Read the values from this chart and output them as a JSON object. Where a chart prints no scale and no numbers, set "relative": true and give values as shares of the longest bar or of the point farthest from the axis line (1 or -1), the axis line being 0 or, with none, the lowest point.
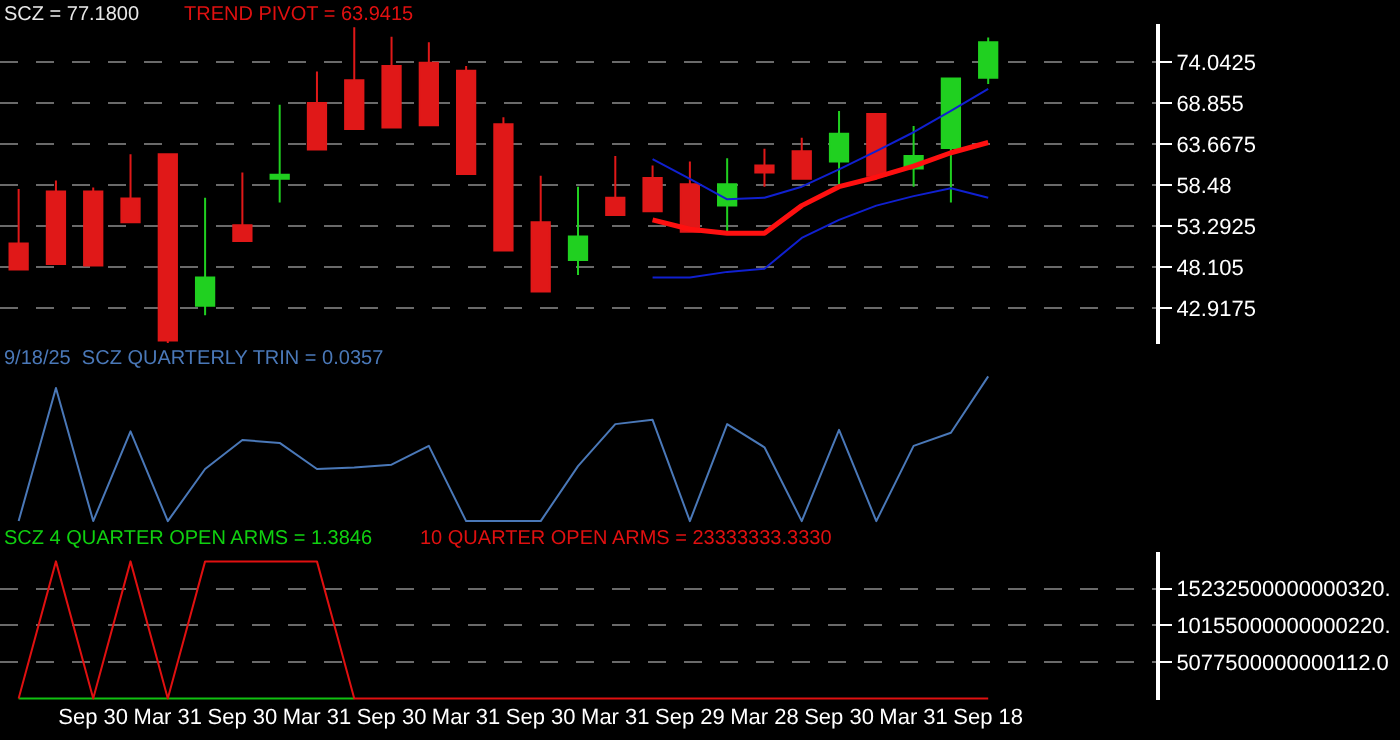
{
  "chart_data": [
    {
      "type": "candlestick",
      "categories": [
        null,
        null,
        null,
        null,
        null,
        null,
        null,
        null,
        null,
        null,
        null,
        null,
        null,
        null,
        null,
        null,
        null,
        null,
        null,
        null,
        null,
        null,
        null,
        null,
        null,
        null,
        null,
        null,
        null,
        null,
        null
      ],
      "ohlc": [
        [
          51.1,
          58.0,
          47.8,
          47.8
        ],
        [
          57.7,
          59.1,
          48.5,
          48.5
        ],
        [
          57.7,
          58.2,
          48.3,
          48.3
        ],
        [
          56.8,
          62.4,
          53.8,
          53.8
        ],
        [
          62.4,
          62.4,
          38.5,
          38.8
        ],
        [
          43.2,
          56.9,
          42.0,
          46.8
        ],
        [
          53.4,
          60.1,
          51.4,
          51.4
        ],
        [
          59.3,
          68.7,
          56.3,
          59.8
        ],
        [
          68.9,
          72.9,
          63.0,
          63.0
        ],
        [
          71.8,
          78.5,
          65.6,
          65.6
        ],
        [
          73.6,
          77.3,
          65.8,
          65.8
        ],
        [
          74.0,
          76.6,
          66.1,
          66.1
        ],
        [
          73.0,
          73.6,
          59.9,
          59.9
        ],
        [
          66.2,
          67.1,
          50.2,
          50.2
        ],
        [
          53.8,
          59.7,
          45.0,
          45.0
        ],
        [
          49.0,
          58.3,
          47.1,
          52.0
        ],
        [
          56.9,
          62.2,
          54.7,
          54.7
        ],
        [
          59.4,
          61.0,
          55.2,
          55.2
        ],
        [
          58.6,
          61.5,
          52.6,
          52.6
        ],
        [
          55.9,
          61.9,
          52.6,
          58.6
        ],
        [
          61.0,
          63.1,
          58.3,
          60.1
        ],
        [
          62.8,
          64.5,
          59.3,
          59.3
        ],
        [
          61.5,
          67.9,
          58.6,
          65.0
        ],
        [
          67.5,
          67.5,
          59.7,
          59.7
        ],
        [
          60.6,
          66.0,
          58.3,
          62.2
        ],
        [
          63.2,
          72.0,
          56.3,
          72.0
        ],
        [
          72.1,
          77.2,
          71.3,
          76.6
        ],
        null,
        null,
        null,
        null
      ],
      "series": [
        {
          "type": "line",
          "color": "#ff1010",
          "values": [
            null,
            null,
            null,
            null,
            null,
            null,
            null,
            null,
            null,
            null,
            null,
            null,
            null,
            null,
            null,
            null,
            null,
            54.1,
            52.9,
            52.4,
            52.4,
            55.9,
            58.3,
            59.5,
            60.9,
            62.6,
            63.9,
            null,
            null,
            null,
            null
          ]
        },
        {
          "type": "line",
          "color": "#1020d0",
          "values": [
            null,
            null,
            null,
            null,
            null,
            null,
            null,
            null,
            null,
            null,
            null,
            null,
            null,
            null,
            null,
            null,
            null,
            61.8,
            59.3,
            56.7,
            56.9,
            58.3,
            60.5,
            62.8,
            65.2,
            67.9,
            70.7,
            null,
            null,
            null,
            null
          ]
        },
        {
          "type": "line",
          "color": "#1020d0",
          "values": [
            null,
            null,
            null,
            null,
            null,
            null,
            null,
            null,
            null,
            null,
            null,
            null,
            null,
            null,
            null,
            null,
            null,
            46.8,
            46.8,
            47.5,
            47.9,
            51.8,
            54.1,
            55.9,
            57.1,
            58.1,
            56.9,
            null,
            null,
            null,
            null
          ]
        }
      ],
      "ylim": [
        38.36,
        78.92
      ],
      "yticks": [
        42.9175,
        48.105,
        53.2925,
        58.48,
        63.6675,
        68.855,
        74.0425
      ],
      "grid": "y",
      "tick_labels": "y",
      "annotations": [
        "SCZ = 77.1800",
        "TREND PIVOT = 63.9415"
      ]
    },
    {
      "type": "line",
      "relative": true,
      "categories": [
        null,
        null,
        null,
        null,
        null,
        null,
        null,
        null,
        null,
        null,
        null,
        null,
        null,
        null,
        null,
        null,
        null,
        null,
        null,
        null,
        null,
        null,
        null,
        null,
        null,
        null,
        null,
        null,
        null,
        null,
        null
      ],
      "series": [
        {
          "color": "#4a78b8",
          "values": [
            0,
            0.92,
            0,
            0.62,
            0,
            0.36,
            0.56,
            0.54,
            0.36,
            0.37,
            0.39,
            0.52,
            0,
            0,
            0,
            0.38,
            0.67,
            0.7,
            0,
            0.67,
            0.51,
            0,
            0.63,
            0,
            0.52,
            0.61,
            1,
            null,
            null,
            null,
            null
          ]
        }
      ],
      "tick_labels": false,
      "annotations": [
        "9/18/25  SCZ QUARTERLY TRIN = 0.0357"
      ]
    },
    {
      "type": "line",
      "categories": [
        null,
        null,
        "Sep 30",
        null,
        "Mar 31",
        null,
        "Sep 30",
        null,
        "Mar 31",
        null,
        "Sep 30",
        null,
        "Mar 31",
        null,
        "Sep 30",
        null,
        "Mar 31",
        null,
        "Sep 29",
        null,
        "Mar 28",
        null,
        "Sep 30",
        null,
        "Mar 31",
        null,
        "Sep 18",
        null,
        null,
        null,
        null
      ],
      "series": [
        {
          "color": "#10c010",
          "values": [
            0,
            0,
            0,
            0,
            0,
            0,
            0,
            0,
            0,
            0,
            null,
            null,
            null,
            null,
            null,
            null,
            null,
            null,
            null,
            null,
            null,
            null,
            null,
            null,
            null,
            null,
            null,
            null,
            null,
            null,
            null
          ]
        },
        {
          "color": "#e01010",
          "values": [
            0,
            19000000000000000,
            0,
            19000000000000000,
            0,
            19000000000000000,
            19000000000000000,
            19000000000000000,
            19000000000000000,
            0,
            0,
            0,
            0,
            0,
            0,
            0,
            0,
            0,
            0,
            0,
            0,
            0,
            0,
            0,
            0,
            0,
            0,
            null,
            null,
            null,
            null
          ]
        }
      ],
      "ylim": [
        -200000000000000,
        20300000000000000
      ],
      "yticks": [
        {
          "value": 5077500000000112,
          "label": "5077500000000112.0"
        },
        {
          "value": 10155000000000220,
          "label": "10155000000000220."
        },
        {
          "value": 15232500000000320,
          "label": "15232500000000320."
        }
      ],
      "grid": "y",
      "annotations": [
        "SCZ 4 QUARTER OPEN ARMS = 1.3846",
        "10 QUARTER OPEN ARMS = 23333333.3330"
      ]
    }
  ]
}
